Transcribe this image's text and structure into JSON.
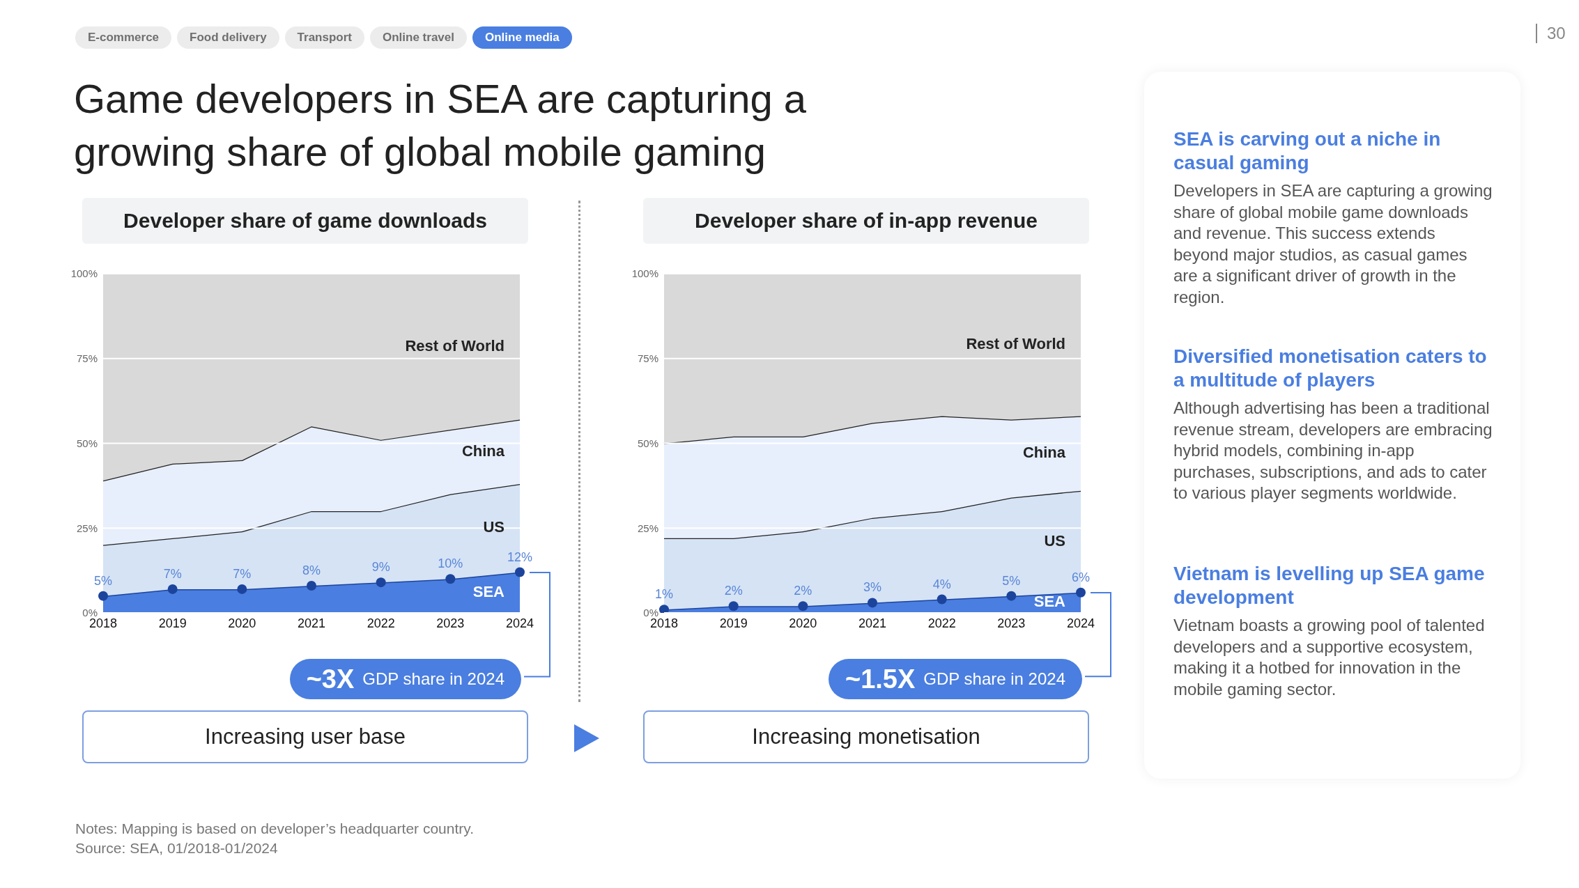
{
  "chart_data": [
    {
      "type": "other",
      "title": "Game developers in SEA are capturing a growing share of global mobile gaming",
      "annotations": [
        "E-commerce",
        "Food delivery",
        "Transport",
        "Online travel",
        "Online media"
      ]
    },
    {
      "type": "area",
      "stacked": true,
      "title": "Developer share of game downloads",
      "categories": [
        "2018",
        "2019",
        "2020",
        "2021",
        "2022",
        "2023",
        "2024"
      ],
      "ylim": [
        0,
        100
      ],
      "yticks": [
        {
          "value": 0,
          "label": "0%"
        },
        {
          "value": 25,
          "label": "25%"
        },
        {
          "value": 50,
          "label": "50%"
        },
        {
          "value": 75,
          "label": "75%"
        },
        {
          "value": 100,
          "label": "100%"
        }
      ],
      "grid": "y",
      "legend": false,
      "annotations": [
        "~3X GDP share in 2024",
        "Increasing user base"
      ],
      "series": [
        {
          "name": "SEA",
          "color": "#4a7ee0",
          "marker": "circle",
          "values": [
            5,
            7,
            7,
            8,
            9,
            10,
            12
          ],
          "value_labels": [
            "5%",
            "7%",
            "7%",
            "8%",
            "9%",
            "10%",
            "12%"
          ]
        },
        {
          "name": "US",
          "color": "#d5e3f5",
          "values": [
            15,
            15,
            17,
            22,
            21,
            25,
            26
          ]
        },
        {
          "name": "China",
          "color": "#e8effc",
          "values": [
            19,
            22,
            21,
            25,
            21,
            19,
            19
          ]
        },
        {
          "name": "Rest of World",
          "color": "#d9d9d9",
          "values": [
            61,
            56,
            55,
            45,
            49,
            46,
            43
          ]
        }
      ]
    },
    {
      "type": "area",
      "stacked": true,
      "title": "Developer share of in-app revenue",
      "categories": [
        "2018",
        "2019",
        "2020",
        "2021",
        "2022",
        "2023",
        "2024"
      ],
      "ylim": [
        0,
        100
      ],
      "yticks": [
        {
          "value": 0,
          "label": "0%"
        },
        {
          "value": 25,
          "label": "25%"
        },
        {
          "value": 50,
          "label": "50%"
        },
        {
          "value": 75,
          "label": "75%"
        },
        {
          "value": 100,
          "label": "100%"
        }
      ],
      "grid": "y",
      "legend": false,
      "annotations": [
        "~1.5X GDP share in 2024",
        "Increasing monetisation"
      ],
      "series": [
        {
          "name": "SEA",
          "color": "#4a7ee0",
          "marker": "circle",
          "values": [
            1,
            2,
            2,
            3,
            4,
            5,
            6
          ],
          "value_labels": [
            "1%",
            "2%",
            "2%",
            "3%",
            "4%",
            "5%",
            "6%"
          ]
        },
        {
          "name": "US",
          "color": "#d5e3f5",
          "values": [
            21,
            20,
            22,
            25,
            26,
            29,
            30
          ]
        },
        {
          "name": "China",
          "color": "#e8effc",
          "values": [
            28,
            30,
            28,
            28,
            28,
            23,
            22
          ]
        },
        {
          "name": "Rest of World",
          "color": "#d9d9d9",
          "values": [
            50,
            48,
            48,
            44,
            42,
            43,
            42
          ]
        }
      ]
    },
    {
      "type": "other",
      "title": "SEA is carving out a niche in casual gaming",
      "annotations": [
        "Developers in SEA are capturing a growing share of global mobile game downloads and revenue. This success extends beyond major studios, as casual games are a significant driver of growth in the region."
      ]
    },
    {
      "type": "other",
      "title": "Diversified monetisation caters to a multitude of players",
      "annotations": [
        "Although advertising has been a traditional revenue stream, developers are embracing hybrid models, combining in-app purchases, subscriptions, and ads to cater to various player segments worldwide."
      ]
    },
    {
      "type": "other",
      "title": "Vietnam is levelling up SEA game development",
      "annotations": [
        "Vietnam boasts a growing pool of talented developers and a supportive ecosystem, making it a hotbed for innovation in the mobile gaming sector."
      ]
    },
    {
      "type": "other",
      "annotations": [
        "Notes: Mapping is based on developer’s headquarter country.",
        "Source: SEA, 01/2018-01/2024",
        "30"
      ]
    }
  ]
}
